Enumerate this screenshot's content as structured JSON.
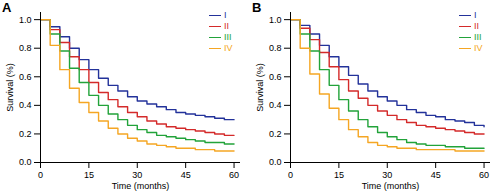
{
  "chart_data": [
    {
      "type": "line",
      "title": "A",
      "xlabel": "Time (months)",
      "ylabel": "Survival (%)",
      "x": [
        0,
        3,
        6,
        9,
        12,
        15,
        18,
        21,
        24,
        27,
        30,
        33,
        36,
        39,
        42,
        45,
        48,
        51,
        54,
        57,
        60
      ],
      "series": [
        {
          "name": "I",
          "color": "#23329a",
          "values": [
            1.0,
            0.95,
            0.88,
            0.8,
            0.72,
            0.65,
            0.59,
            0.54,
            0.5,
            0.46,
            0.43,
            0.41,
            0.39,
            0.37,
            0.35,
            0.34,
            0.33,
            0.32,
            0.31,
            0.3,
            0.3
          ]
        },
        {
          "name": "II",
          "color": "#d42a2a",
          "values": [
            1.0,
            0.93,
            0.84,
            0.74,
            0.65,
            0.56,
            0.49,
            0.44,
            0.39,
            0.35,
            0.32,
            0.29,
            0.27,
            0.25,
            0.24,
            0.23,
            0.22,
            0.21,
            0.2,
            0.19,
            0.19
          ]
        },
        {
          "name": "III",
          "color": "#22a33a",
          "values": [
            1.0,
            0.9,
            0.78,
            0.66,
            0.56,
            0.47,
            0.4,
            0.34,
            0.3,
            0.26,
            0.23,
            0.21,
            0.19,
            0.18,
            0.17,
            0.16,
            0.15,
            0.14,
            0.14,
            0.13,
            0.13
          ]
        },
        {
          "name": "IV",
          "color": "#f5a623",
          "values": [
            1.0,
            0.82,
            0.65,
            0.52,
            0.42,
            0.35,
            0.29,
            0.24,
            0.2,
            0.17,
            0.15,
            0.13,
            0.12,
            0.11,
            0.1,
            0.1,
            0.09,
            0.09,
            0.08,
            0.08,
            0.08
          ]
        }
      ],
      "xlim": [
        0,
        62
      ],
      "xticks": [
        0,
        15,
        30,
        45,
        60
      ],
      "ylim": [
        0,
        1.05
      ],
      "yticks": [
        {
          "value": 0,
          "label": "0.0"
        },
        0.2,
        0.4,
        0.6,
        0.8,
        {
          "value": 1,
          "label": "1.0"
        }
      ],
      "legend": "top-right",
      "line_style": "step"
    },
    {
      "type": "line",
      "title": "B",
      "xlabel": "Time (months)",
      "ylabel": "Survival (%)",
      "x": [
        0,
        3,
        6,
        9,
        12,
        15,
        18,
        21,
        24,
        27,
        30,
        33,
        36,
        39,
        42,
        45,
        48,
        51,
        54,
        57,
        60
      ],
      "series": [
        {
          "name": "I",
          "color": "#23329a",
          "values": [
            1.0,
            0.96,
            0.9,
            0.82,
            0.74,
            0.67,
            0.61,
            0.55,
            0.5,
            0.46,
            0.43,
            0.4,
            0.37,
            0.35,
            0.33,
            0.32,
            0.3,
            0.29,
            0.28,
            0.26,
            0.25
          ]
        },
        {
          "name": "II",
          "color": "#d42a2a",
          "values": [
            1.0,
            0.94,
            0.86,
            0.77,
            0.67,
            0.58,
            0.5,
            0.45,
            0.4,
            0.36,
            0.33,
            0.3,
            0.28,
            0.26,
            0.25,
            0.24,
            0.23,
            0.22,
            0.21,
            0.2,
            0.2
          ]
        },
        {
          "name": "III",
          "color": "#22a33a",
          "values": [
            1.0,
            0.9,
            0.78,
            0.65,
            0.54,
            0.44,
            0.36,
            0.3,
            0.25,
            0.21,
            0.18,
            0.16,
            0.14,
            0.13,
            0.12,
            0.12,
            0.11,
            0.11,
            0.1,
            0.1,
            0.1
          ]
        },
        {
          "name": "IV",
          "color": "#f5a623",
          "values": [
            1.0,
            0.8,
            0.62,
            0.48,
            0.38,
            0.3,
            0.23,
            0.18,
            0.14,
            0.12,
            0.11,
            0.1,
            0.1,
            0.09,
            0.09,
            0.09,
            0.09,
            0.08,
            0.08,
            0.08,
            0.08
          ]
        }
      ],
      "xlim": [
        0,
        62
      ],
      "xticks": [
        0,
        15,
        30,
        45,
        60
      ],
      "ylim": [
        0,
        1.05
      ],
      "yticks": [
        {
          "value": 0,
          "label": "0.0"
        },
        0.2,
        0.4,
        0.6,
        0.8,
        {
          "value": 1,
          "label": "1.0"
        }
      ],
      "legend": "top-right",
      "line_style": "step"
    }
  ]
}
